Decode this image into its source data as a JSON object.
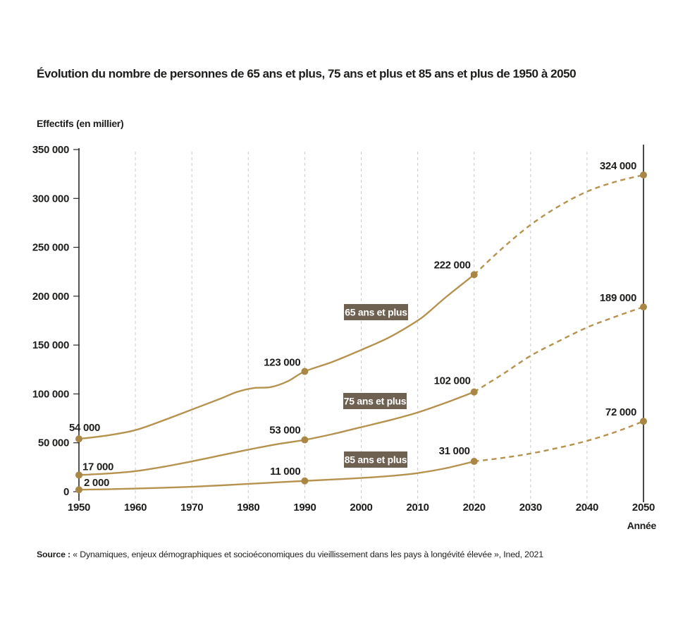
{
  "page": {
    "title": "Évolution du nombre de personnes de 65 ans et plus, 75 ans et plus et 85 ans et plus de 1950 à 2050",
    "source_prefix": "Source :",
    "source_text": " « Dynamiques, enjeux démographiques et socioéconomiques du vieillissement dans les pays à longévité élevée », Ined, 2021"
  },
  "chart_data": {
    "type": "line",
    "title": "Évolution du nombre de personnes de 65 ans et plus, 75 ans et plus et 85 ans et plus de 1950 à 2050",
    "xlabel": "Année",
    "ylabel": "Effectifs (en millier)",
    "xlim": [
      1950,
      2050
    ],
    "ylim": [
      0,
      350000
    ],
    "x_ticks": [
      1950,
      1960,
      1970,
      1980,
      1990,
      2000,
      2010,
      2020,
      2030,
      2040,
      2050
    ],
    "y_ticks": [
      {
        "value": 0,
        "label": "0"
      },
      {
        "value": 50000,
        "label": "50 000"
      },
      {
        "value": 100000,
        "label": "100 000"
      },
      {
        "value": 150000,
        "label": "150 000"
      },
      {
        "value": 200000,
        "label": "200 000"
      },
      {
        "value": 250000,
        "label": "250 000"
      },
      {
        "value": 300000,
        "label": "300 000"
      },
      {
        "value": 350000,
        "label": "350 000"
      }
    ],
    "grid": "vertical-dashed",
    "legend_position": "inline-tags",
    "projection": {
      "from": 2020,
      "style": "dashed"
    },
    "colors": {
      "line": "#b6924f",
      "marker": "#aa8645",
      "tag_bg": "#6e6152",
      "tag_text": "#ffffff",
      "grid": "#cbcbcb",
      "axis": "#2b2b2b",
      "boundary": "#1c1c1c",
      "text": "#1d1d1b"
    },
    "series": [
      {
        "name": "65 ans et plus",
        "solid": [
          [
            1950,
            54000
          ],
          [
            1955,
            57500
          ],
          [
            1960,
            63000
          ],
          [
            1965,
            73000
          ],
          [
            1970,
            84000
          ],
          [
            1975,
            95000
          ],
          [
            1978,
            102000
          ],
          [
            1981,
            106000
          ],
          [
            1984,
            107000
          ],
          [
            1987,
            113000
          ],
          [
            1990,
            123000
          ],
          [
            1995,
            133000
          ],
          [
            2000,
            145000
          ],
          [
            2005,
            158000
          ],
          [
            2010,
            175000
          ],
          [
            2012,
            184000
          ],
          [
            2015,
            199000
          ],
          [
            2020,
            222000
          ]
        ],
        "projected": [
          [
            2020,
            222000
          ],
          [
            2025,
            249000
          ],
          [
            2030,
            273000
          ],
          [
            2035,
            292000
          ],
          [
            2040,
            307000
          ],
          [
            2045,
            317000
          ],
          [
            2050,
            324000
          ]
        ],
        "markers": [
          {
            "year": 1950,
            "value": 54000,
            "label": "54 000",
            "anchor": "start",
            "dx": -14,
            "dy": -11
          },
          {
            "year": 1990,
            "value": 123000,
            "label": "123 000",
            "anchor": "end",
            "dx": -6,
            "dy": -8
          },
          {
            "year": 2020,
            "value": 222000,
            "label": "222 000",
            "anchor": "end",
            "dx": -5,
            "dy": -9
          },
          {
            "year": 2050,
            "value": 324000,
            "label": "324 000",
            "anchor": "end",
            "dx": -10,
            "dy": -8
          }
        ],
        "tag": {
          "label": "65 ans et plus",
          "x": 488,
          "y": 431,
          "w": 91,
          "h": 23
        }
      },
      {
        "name": "75 ans et plus",
        "solid": [
          [
            1950,
            17000
          ],
          [
            1955,
            18500
          ],
          [
            1960,
            21000
          ],
          [
            1965,
            25500
          ],
          [
            1970,
            31000
          ],
          [
            1975,
            37000
          ],
          [
            1980,
            43000
          ],
          [
            1985,
            48500
          ],
          [
            1990,
            53000
          ],
          [
            1995,
            59000
          ],
          [
            2000,
            66000
          ],
          [
            2005,
            73000
          ],
          [
            2010,
            81000
          ],
          [
            2015,
            91000
          ],
          [
            2020,
            102000
          ]
        ],
        "projected": [
          [
            2020,
            102000
          ],
          [
            2025,
            120000
          ],
          [
            2030,
            139000
          ],
          [
            2035,
            154000
          ],
          [
            2040,
            168000
          ],
          [
            2045,
            179000
          ],
          [
            2050,
            189000
          ]
        ],
        "markers": [
          {
            "year": 1950,
            "value": 17000,
            "label": "17 000",
            "anchor": "start",
            "dx": 5,
            "dy": -7
          },
          {
            "year": 1990,
            "value": 53000,
            "label": "53 000",
            "anchor": "end",
            "dx": -6,
            "dy": -9
          },
          {
            "year": 2020,
            "value": 102000,
            "label": "102 000",
            "anchor": "end",
            "dx": -5,
            "dy": -11
          },
          {
            "year": 2050,
            "value": 189000,
            "label": "189 000",
            "anchor": "end",
            "dx": -10,
            "dy": -8
          }
        ],
        "tag": {
          "label": "75 ans et plus",
          "x": 487,
          "y": 557,
          "w": 90,
          "h": 23
        }
      },
      {
        "name": "85 ans et plus",
        "solid": [
          [
            1950,
            2000
          ],
          [
            1955,
            2500
          ],
          [
            1960,
            3200
          ],
          [
            1965,
            4000
          ],
          [
            1970,
            5000
          ],
          [
            1975,
            6400
          ],
          [
            1980,
            8000
          ],
          [
            1985,
            9500
          ],
          [
            1990,
            11000
          ],
          [
            1995,
            12500
          ],
          [
            2000,
            14000
          ],
          [
            2005,
            16000
          ],
          [
            2010,
            19000
          ],
          [
            2015,
            24000
          ],
          [
            2020,
            31000
          ]
        ],
        "projected": [
          [
            2020,
            31000
          ],
          [
            2025,
            34500
          ],
          [
            2030,
            39000
          ],
          [
            2035,
            45000
          ],
          [
            2040,
            52000
          ],
          [
            2045,
            61000
          ],
          [
            2050,
            72000
          ]
        ],
        "markers": [
          {
            "year": 1950,
            "value": 2000,
            "label": "2 000",
            "anchor": "start",
            "dx": 7,
            "dy": -5
          },
          {
            "year": 1990,
            "value": 11000,
            "label": "11 000",
            "anchor": "end",
            "dx": -6,
            "dy": -9
          },
          {
            "year": 2020,
            "value": 31000,
            "label": "31 000",
            "anchor": "end",
            "dx": -6,
            "dy": -10
          },
          {
            "year": 2050,
            "value": 72000,
            "label": "72 000",
            "anchor": "end",
            "dx": -10,
            "dy": -8
          }
        ],
        "tag": {
          "label": "85 ans et plus",
          "x": 488,
          "y": 640,
          "w": 90,
          "h": 23
        }
      }
    ]
  }
}
